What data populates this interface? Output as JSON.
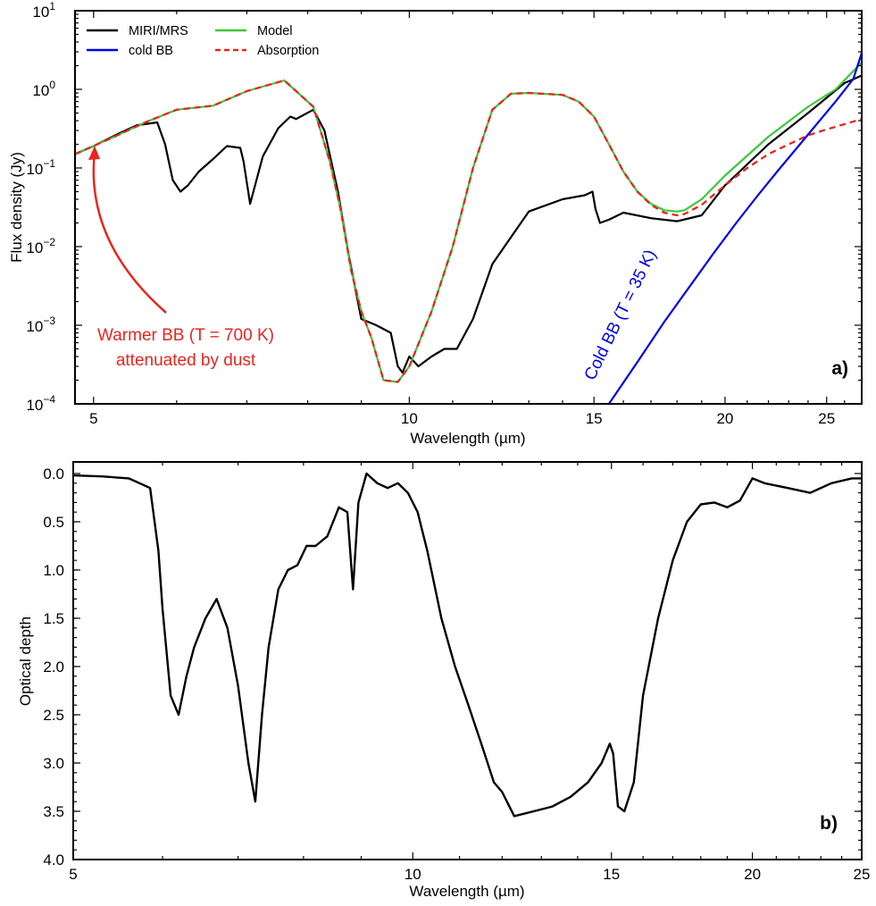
{
  "chart_data": [
    {
      "type": "line",
      "panel_label": "a)",
      "xlabel": "Wavelength (µm)",
      "ylabel": "Flux density (Jy)",
      "xscale": "log",
      "yscale": "log",
      "xlim": [
        4.8,
        27
      ],
      "ylim": [
        0.0001,
        10
      ],
      "xticks": [
        5,
        10,
        15,
        20,
        25
      ],
      "xtick_labels": [
        "5",
        "10",
        "15",
        "20",
        "25"
      ],
      "yticks": [
        {
          "exp": "1",
          "value": 10
        },
        {
          "exp": "0",
          "value": 1
        },
        {
          "exp": "−1",
          "value": 0.1
        },
        {
          "exp": "−2",
          "value": 0.01
        },
        {
          "exp": "−3",
          "value": 0.001
        },
        {
          "exp": "−4",
          "value": 0.0001
        }
      ],
      "ytick_base": "10",
      "legend": {
        "placement": "top-left",
        "entries": [
          {
            "label": "MIRI/MRS",
            "color": "#000000",
            "style": "solid"
          },
          {
            "label": "cold BB",
            "color": "#0000e6",
            "style": "solid"
          },
          {
            "label": "Model",
            "color": "#3cc83c",
            "style": "solid"
          },
          {
            "label": "Absorption",
            "color": "#e8251e",
            "style": "dashed"
          }
        ]
      },
      "annotations": {
        "warm_line1": "Warmer BB (T = 700 K)",
        "warm_line2": "attenuated by dust",
        "cold_label": "Cold BB (T = 35 K)"
      },
      "series": [
        {
          "name": "MIRI/MRS",
          "color": "#000000",
          "x": [
            4.8,
            5.0,
            5.3,
            5.5,
            5.75,
            5.85,
            5.95,
            6.05,
            6.15,
            6.3,
            6.5,
            6.7,
            6.9,
            6.95,
            7.05,
            7.25,
            7.5,
            7.7,
            7.8,
            8.1,
            8.3,
            8.55,
            8.75,
            9.0,
            9.3,
            9.6,
            9.75,
            9.85,
            10.0,
            10.2,
            10.5,
            10.8,
            11.1,
            11.5,
            12.0,
            13.0,
            14.0,
            14.7,
            14.95,
            15.05,
            15.2,
            15.5,
            16.0,
            17.0,
            18.0,
            19.0,
            20.0,
            22.0,
            24.0,
            26.0,
            27.0
          ],
          "y": [
            0.15,
            0.19,
            0.28,
            0.35,
            0.38,
            0.2,
            0.07,
            0.05,
            0.06,
            0.09,
            0.13,
            0.19,
            0.18,
            0.12,
            0.035,
            0.14,
            0.32,
            0.45,
            0.42,
            0.55,
            0.3,
            0.05,
            0.008,
            0.0012,
            0.001,
            0.0008,
            0.0003,
            0.00025,
            0.0004,
            0.0003,
            0.0004,
            0.0005,
            0.0005,
            0.0012,
            0.006,
            0.028,
            0.04,
            0.045,
            0.05,
            0.03,
            0.02,
            0.022,
            0.027,
            0.023,
            0.021,
            0.025,
            0.06,
            0.2,
            0.5,
            1.2,
            1.5
          ]
        },
        {
          "name": "Model",
          "color": "#3cc83c",
          "x": [
            4.8,
            5.2,
            5.6,
            6.0,
            6.5,
            7.0,
            7.6,
            8.1,
            8.4,
            8.6,
            8.8,
            9.0,
            9.2,
            9.45,
            9.75,
            10.0,
            10.5,
            11.0,
            11.5,
            12.0,
            12.5,
            13.0,
            14.0,
            14.5,
            15.0,
            15.5,
            16.0,
            16.5,
            17.0,
            17.5,
            18.0,
            18.3,
            19.0,
            20.0,
            22.0,
            24.0,
            25.5,
            27.0
          ],
          "y": [
            0.15,
            0.24,
            0.38,
            0.55,
            0.62,
            0.95,
            1.3,
            0.6,
            0.12,
            0.03,
            0.005,
            0.0015,
            0.0007,
            0.0002,
            0.00019,
            0.0003,
            0.0015,
            0.01,
            0.1,
            0.55,
            0.88,
            0.9,
            0.85,
            0.7,
            0.45,
            0.2,
            0.09,
            0.05,
            0.035,
            0.029,
            0.028,
            0.029,
            0.04,
            0.08,
            0.25,
            0.6,
            1.0,
            2.2
          ]
        },
        {
          "name": "Absorption",
          "color": "#e8251e",
          "dashed": true,
          "x": [
            4.8,
            5.2,
            5.6,
            6.0,
            6.5,
            7.0,
            7.6,
            8.1,
            8.4,
            8.6,
            8.8,
            9.0,
            9.2,
            9.45,
            9.75,
            10.0,
            10.5,
            11.0,
            11.5,
            12.0,
            12.5,
            13.0,
            14.0,
            14.5,
            15.0,
            15.5,
            16.0,
            16.5,
            17.0,
            17.5,
            18.0,
            18.3,
            19.0,
            20.0,
            21.0,
            22.0,
            23.0,
            24.0,
            25.0,
            26.0,
            27.0
          ],
          "y": [
            0.15,
            0.24,
            0.38,
            0.55,
            0.62,
            0.95,
            1.3,
            0.6,
            0.12,
            0.03,
            0.005,
            0.0015,
            0.0007,
            0.0002,
            0.00019,
            0.0003,
            0.0015,
            0.01,
            0.1,
            0.55,
            0.88,
            0.9,
            0.85,
            0.7,
            0.45,
            0.2,
            0.09,
            0.05,
            0.034,
            0.027,
            0.025,
            0.026,
            0.034,
            0.06,
            0.1,
            0.15,
            0.2,
            0.26,
            0.31,
            0.36,
            0.42
          ]
        },
        {
          "name": "cold BB",
          "color": "#0000e6",
          "x": [
            15.5,
            16.5,
            17.5,
            18.5,
            19.5,
            20.5,
            21.5,
            22.5,
            23.5,
            24.5,
            25.5,
            26.5,
            27.0
          ],
          "y": [
            0.0001,
            0.00034,
            0.0011,
            0.0031,
            0.0082,
            0.02,
            0.045,
            0.095,
            0.19,
            0.37,
            0.7,
            1.35,
            2.9
          ]
        }
      ]
    },
    {
      "type": "line",
      "panel_label": "b)",
      "xlabel": "Wavelength (µm)",
      "ylabel": "Optical depth",
      "xscale": "log",
      "yscale": "linear",
      "y_inverted": true,
      "xlim": [
        5,
        25
      ],
      "ylim": [
        0,
        4
      ],
      "xticks": [
        5,
        10,
        15,
        20,
        25
      ],
      "xtick_labels": [
        "5",
        "10",
        "15",
        "20",
        "25"
      ],
      "yticks": [
        0,
        0.5,
        1,
        1.5,
        2,
        2.5,
        3,
        3.5,
        4
      ],
      "ytick_labels": [
        "0.0",
        "0.5",
        "1.0",
        "1.5",
        "2.0",
        "2.5",
        "3.0",
        "3.5",
        "4.0"
      ],
      "series": [
        {
          "name": "Optical depth",
          "color": "#000000",
          "x": [
            5.0,
            5.3,
            5.6,
            5.85,
            5.95,
            6.0,
            6.1,
            6.2,
            6.3,
            6.4,
            6.55,
            6.7,
            6.85,
            7.0,
            7.15,
            7.25,
            7.35,
            7.45,
            7.6,
            7.75,
            7.9,
            8.05,
            8.2,
            8.4,
            8.6,
            8.75,
            8.85,
            8.95,
            9.1,
            9.3,
            9.5,
            9.7,
            9.9,
            10.1,
            10.3,
            10.6,
            10.9,
            11.2,
            11.5,
            11.8,
            12.0,
            12.3,
            12.8,
            13.3,
            13.8,
            14.3,
            14.7,
            14.95,
            15.05,
            15.2,
            15.4,
            15.7,
            16.0,
            16.5,
            17.0,
            17.5,
            18.0,
            18.5,
            19.0,
            19.5,
            20.0,
            20.5,
            21.5,
            22.5,
            23.5,
            24.5,
            25.0
          ],
          "y": [
            0.02,
            0.03,
            0.05,
            0.15,
            0.8,
            1.4,
            2.3,
            2.5,
            2.1,
            1.8,
            1.5,
            1.3,
            1.6,
            2.2,
            3.0,
            3.4,
            2.5,
            1.8,
            1.2,
            1.0,
            0.95,
            0.75,
            0.75,
            0.65,
            0.35,
            0.4,
            1.2,
            0.3,
            0.0,
            0.1,
            0.15,
            0.1,
            0.2,
            0.4,
            0.8,
            1.5,
            2.0,
            2.4,
            2.8,
            3.2,
            3.3,
            3.55,
            3.5,
            3.45,
            3.35,
            3.2,
            3.0,
            2.8,
            2.9,
            3.45,
            3.5,
            3.2,
            2.3,
            1.5,
            0.9,
            0.5,
            0.32,
            0.3,
            0.35,
            0.28,
            0.05,
            0.1,
            0.15,
            0.2,
            0.1,
            0.05,
            0.05
          ]
        }
      ]
    }
  ]
}
